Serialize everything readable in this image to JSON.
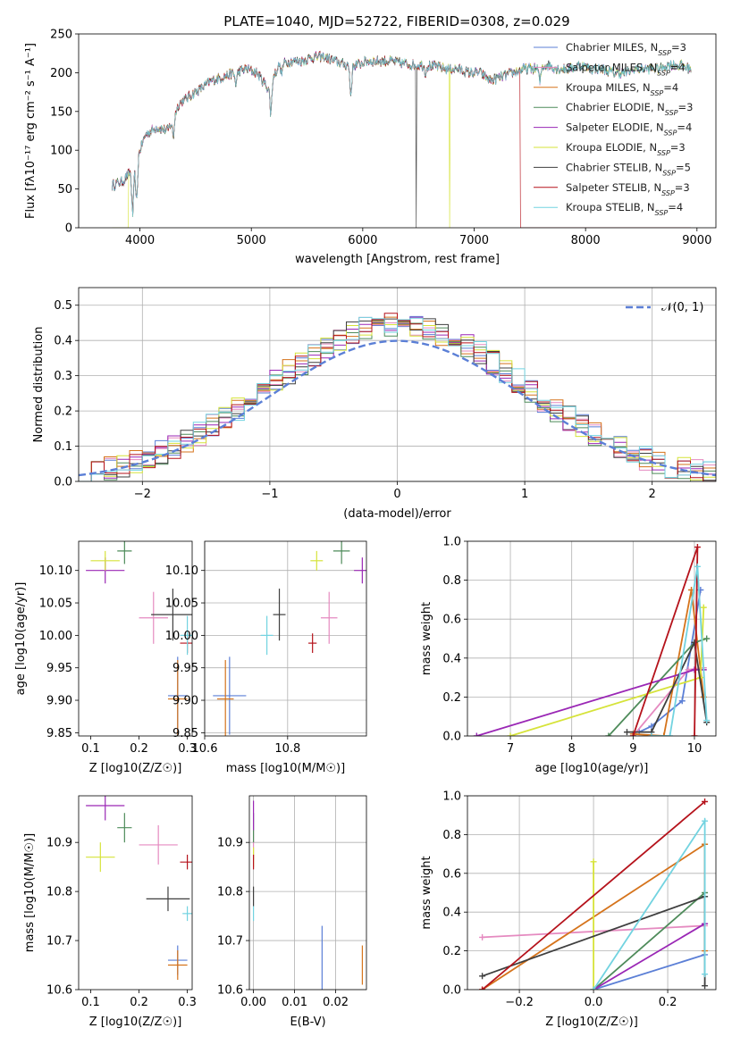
{
  "colors": [
    "#5b7fd6",
    "#e58ac0",
    "#d5731b",
    "#4e8b5a",
    "#9a27b5",
    "#d6e33a",
    "#3f3f3f",
    "#b5121b",
    "#72d3e0"
  ],
  "legend": [
    {
      "label": "Chabrier MILES, N",
      "sub": "SSP",
      "suffix": "=3"
    },
    {
      "label": "Salpeter MILES, N",
      "sub": "SSP",
      "suffix": "=4"
    },
    {
      "label": "Kroupa MILES, N",
      "sub": "SSP",
      "suffix": "=4"
    },
    {
      "label": "Chabrier ELODIE, N",
      "sub": "SSP",
      "suffix": "=3"
    },
    {
      "label": "Salpeter ELODIE, N",
      "sub": "SSP",
      "suffix": "=4"
    },
    {
      "label": "Kroupa ELODIE, N",
      "sub": "SSP",
      "suffix": "=3"
    },
    {
      "label": "Chabrier STELIB, N",
      "sub": "SSP",
      "suffix": "=5"
    },
    {
      "label": "Salpeter STELIB, N",
      "sub": "SSP",
      "suffix": "=3"
    },
    {
      "label": "Kroupa STELIB, N",
      "sub": "SSP",
      "suffix": "=4"
    }
  ],
  "chart_data": [
    {
      "id": "spectrum",
      "type": "line",
      "title": "PLATE=1040, MJD=52722, FIBERID=0308, z=0.029",
      "xlabel": "wavelength [Angstrom, rest frame]",
      "ylabel": "Flux [f_λ 10^-17 erg cm^-2 s^-1 A^-1]",
      "xlim": [
        3450,
        9170
      ],
      "ylim": [
        0,
        250
      ],
      "xticks": [
        4000,
        5000,
        6000,
        7000,
        8000,
        9000
      ],
      "yticks": [
        0,
        50,
        100,
        150,
        200,
        250
      ],
      "continuum": {
        "x": [
          3750,
          3850,
          3950,
          4050,
          4150,
          4250,
          4350,
          4450,
          4550,
          4650,
          4750,
          4850,
          4950,
          5050,
          5150,
          5250,
          5350,
          5450,
          5550,
          5650,
          5750,
          5850,
          5950,
          6050,
          6150,
          6250,
          6350,
          6450,
          6550,
          6650,
          6750,
          6850,
          6950,
          7050,
          7150,
          7250,
          7350,
          7450,
          7550,
          7650,
          7750,
          7850,
          7950,
          8050,
          8150,
          8250,
          8350,
          8450,
          8550,
          8650,
          8750,
          8850,
          8950
        ],
        "y": [
          55,
          60,
          80,
          120,
          130,
          125,
          160,
          170,
          180,
          190,
          195,
          200,
          205,
          200,
          180,
          210,
          215,
          215,
          220,
          220,
          215,
          210,
          210,
          215,
          215,
          215,
          212,
          210,
          210,
          208,
          205,
          205,
          200,
          200,
          190,
          195,
          200,
          205,
          205,
          210,
          205,
          205,
          210,
          205,
          205,
          200,
          200,
          205,
          205,
          205,
          210,
          210,
          205
        ]
      },
      "dropouts": [
        {
          "series": 5,
          "x": 3900
        },
        {
          "series": 6,
          "x": 6480
        },
        {
          "series": 5,
          "x": 6780
        },
        {
          "series": 7,
          "x": 7410
        }
      ]
    },
    {
      "id": "residuals",
      "type": "line",
      "xlabel": "(data-model)/error",
      "ylabel": "Normed distribution",
      "xlim": [
        -2.5,
        2.5
      ],
      "ylim": [
        0,
        0.55
      ],
      "xticks": [
        -2,
        -1,
        0,
        1,
        2
      ],
      "yticks": [
        0.0,
        0.1,
        0.2,
        0.3,
        0.4,
        0.5
      ],
      "legend_label": "𝒩(0, 1)",
      "legend_loc": "top-right",
      "grid": true,
      "bin_width": 0.1
    },
    {
      "id": "z_age",
      "type": "scatter",
      "xlabel": "Z [log10(Z/Z☉)]",
      "ylabel": "age  [log10(age/yr)]",
      "xlim": [
        0.075,
        0.31
      ],
      "ylim": [
        9.845,
        10.145
      ],
      "xticks": [
        0.1,
        0.2,
        0.3
      ],
      "yticks": [
        9.85,
        9.9,
        9.95,
        10.0,
        10.05,
        10.1
      ],
      "points": [
        {
          "s": 0,
          "x": 0.28,
          "y": 9.907,
          "xe": 0.02,
          "ye": 0.06
        },
        {
          "s": 1,
          "x": 0.23,
          "y": 10.027,
          "xe": 0.03,
          "ye": 0.04
        },
        {
          "s": 2,
          "x": 0.28,
          "y": 9.902,
          "xe": 0.02,
          "ye": 0.06
        },
        {
          "s": 3,
          "x": 0.17,
          "y": 10.13,
          "xe": 0.015,
          "ye": 0.02
        },
        {
          "s": 4,
          "x": 0.13,
          "y": 10.1,
          "xe": 0.04,
          "ye": 0.02
        },
        {
          "s": 5,
          "x": 0.13,
          "y": 10.115,
          "xe": 0.03,
          "ye": 0.015
        },
        {
          "s": 6,
          "x": 0.27,
          "y": 10.032,
          "xe": 0.045,
          "ye": 0.04
        },
        {
          "s": 7,
          "x": 0.3,
          "y": 9.988,
          "xe": 0.015,
          "ye": 0.015
        },
        {
          "s": 8,
          "x": 0.3,
          "y": 10.0,
          "xe": 0.015,
          "ye": 0.03
        }
      ]
    },
    {
      "id": "mass_age",
      "type": "scatter",
      "xlabel": "mass [log10(M/M☉)]",
      "ylabel": "",
      "xlim": [
        10.6,
        10.99
      ],
      "ylim": [
        9.845,
        10.145
      ],
      "xticks": [
        10.6,
        10.8
      ],
      "yticks": [
        9.85,
        9.9,
        9.95,
        10.0,
        10.05,
        10.1
      ],
      "points": [
        {
          "s": 0,
          "x": 10.66,
          "y": 9.907,
          "xe": 0.04,
          "ye": 0.06
        },
        {
          "s": 1,
          "x": 10.9,
          "y": 10.027,
          "xe": 0.02,
          "ye": 0.04
        },
        {
          "s": 2,
          "x": 10.65,
          "y": 9.902,
          "xe": 0.02,
          "ye": 0.06
        },
        {
          "s": 3,
          "x": 10.93,
          "y": 10.13,
          "xe": 0.02,
          "ye": 0.02
        },
        {
          "s": 4,
          "x": 10.98,
          "y": 10.1,
          "xe": 0.02,
          "ye": 0.02
        },
        {
          "s": 5,
          "x": 10.87,
          "y": 10.115,
          "xe": 0.015,
          "ye": 0.015
        },
        {
          "s": 6,
          "x": 10.78,
          "y": 10.032,
          "xe": 0.015,
          "ye": 0.04
        },
        {
          "s": 7,
          "x": 10.86,
          "y": 9.988,
          "xe": 0.01,
          "ye": 0.015
        },
        {
          "s": 8,
          "x": 10.75,
          "y": 10.0,
          "xe": 0.015,
          "ye": 0.03
        }
      ]
    },
    {
      "id": "age_weight",
      "type": "line",
      "xlabel": "age  [log10(age/yr)]",
      "ylabel": "mass weight",
      "xlim": [
        6.3,
        10.35
      ],
      "ylim": [
        0,
        1.0
      ],
      "xticks": [
        7,
        8,
        9,
        10
      ],
      "yticks": [
        0.0,
        0.2,
        0.4,
        0.6,
        0.8,
        1.0
      ],
      "series": [
        {
          "s": 0,
          "x": [
            9.1,
            9.3,
            9.8,
            10.1
          ],
          "y": [
            0.02,
            0.05,
            0.18,
            0.75
          ]
        },
        {
          "s": 1,
          "x": [
            9.0,
            9.9,
            10.15
          ],
          "y": [
            0.0,
            0.34,
            0.35
          ]
        },
        {
          "s": 2,
          "x": [
            9.0,
            9.5,
            9.95,
            10.15
          ],
          "y": [
            0.01,
            0.0,
            0.75,
            0.2
          ]
        },
        {
          "s": 3,
          "x": [
            8.6,
            10.0,
            10.2
          ],
          "y": [
            0.0,
            0.48,
            0.5
          ]
        },
        {
          "s": 4,
          "x": [
            6.45,
            10.0,
            10.15
          ],
          "y": [
            0.0,
            0.34,
            0.34
          ]
        },
        {
          "s": 5,
          "x": [
            7.0,
            10.1,
            10.15
          ],
          "y": [
            0.0,
            0.3,
            0.66
          ]
        },
        {
          "s": 6,
          "x": [
            8.9,
            9.3,
            10.0,
            10.2
          ],
          "y": [
            0.02,
            0.02,
            0.48,
            0.07
          ]
        },
        {
          "s": 7,
          "x": [
            9.0,
            10.05,
            10.0
          ],
          "y": [
            0.0,
            0.97,
            0.0
          ]
        },
        {
          "s": 8,
          "x": [
            9.3,
            9.6,
            10.05,
            10.2
          ],
          "y": [
            0.0,
            0.0,
            0.87,
            0.08
          ]
        }
      ]
    },
    {
      "id": "z_mass",
      "type": "scatter",
      "xlabel": "Z [log10(Z/Z☉)]",
      "ylabel": "mass [log10(M/M☉)]",
      "xlim": [
        0.075,
        0.31
      ],
      "ylim": [
        10.6,
        10.995
      ],
      "xticks": [
        0.1,
        0.2,
        0.3
      ],
      "yticks": [
        10.6,
        10.7,
        10.8,
        10.9
      ],
      "points": [
        {
          "s": 0,
          "x": 0.28,
          "y": 10.66,
          "xe": 0.02,
          "ye": 0.03
        },
        {
          "s": 1,
          "x": 0.24,
          "y": 10.895,
          "xe": 0.04,
          "ye": 0.04
        },
        {
          "s": 2,
          "x": 0.28,
          "y": 10.65,
          "xe": 0.02,
          "ye": 0.03
        },
        {
          "s": 3,
          "x": 0.17,
          "y": 10.93,
          "xe": 0.015,
          "ye": 0.03
        },
        {
          "s": 4,
          "x": 0.13,
          "y": 10.975,
          "xe": 0.04,
          "ye": 0.03
        },
        {
          "s": 5,
          "x": 0.12,
          "y": 10.87,
          "xe": 0.03,
          "ye": 0.03
        },
        {
          "s": 6,
          "x": 0.26,
          "y": 10.785,
          "xe": 0.045,
          "ye": 0.025
        },
        {
          "s": 7,
          "x": 0.3,
          "y": 10.86,
          "xe": 0.015,
          "ye": 0.015
        },
        {
          "s": 8,
          "x": 0.3,
          "y": 10.755,
          "xe": 0.01,
          "ye": 0.015
        }
      ]
    },
    {
      "id": "ebv_mass",
      "type": "scatter",
      "xlabel": "E(B-V)",
      "ylabel": "",
      "xlim": [
        -0.001,
        0.0275
      ],
      "ylim": [
        10.6,
        10.995
      ],
      "xticks": [
        0.0,
        0.01,
        0.02
      ],
      "yticks": [
        10.6,
        10.7,
        10.8,
        10.9
      ],
      "points": [
        {
          "s": 0,
          "x": 0.0167,
          "y": 10.66,
          "xe": 0,
          "ye": 0.07
        },
        {
          "s": 1,
          "x": 0.0,
          "y": 10.895,
          "xe": 0,
          "ye": 0.03
        },
        {
          "s": 2,
          "x": 0.0265,
          "y": 10.65,
          "xe": 0,
          "ye": 0.04
        },
        {
          "s": 3,
          "x": 0.0,
          "y": 10.93,
          "xe": 0,
          "ye": 0.03
        },
        {
          "s": 4,
          "x": 0.0,
          "y": 10.955,
          "xe": 0,
          "ye": 0.03
        },
        {
          "s": 5,
          "x": 0.0,
          "y": 10.87,
          "xe": 0,
          "ye": 0.02
        },
        {
          "s": 6,
          "x": 0.0,
          "y": 10.79,
          "xe": 0,
          "ye": 0.02
        },
        {
          "s": 7,
          "x": 0.0,
          "y": 10.86,
          "xe": 0,
          "ye": 0.015
        },
        {
          "s": 8,
          "x": 0.0,
          "y": 10.755,
          "xe": 0,
          "ye": 0.015
        }
      ]
    },
    {
      "id": "z_weight",
      "type": "line",
      "xlabel": "Z [log10(Z/Z☉)]",
      "ylabel": "mass weight",
      "xlim": [
        -0.34,
        0.33
      ],
      "ylim": [
        0,
        1.0
      ],
      "xticks": [
        -0.2,
        0.0,
        0.2
      ],
      "yticks": [
        0.0,
        0.2,
        0.4,
        0.6,
        0.8,
        1.0
      ],
      "series": [
        {
          "s": 0,
          "x": [
            0.0,
            0.3,
            0.3
          ],
          "y": [
            0.0,
            0.18,
            0.75
          ]
        },
        {
          "s": 1,
          "x": [
            -0.3,
            0.3
          ],
          "y": [
            0.27,
            0.33
          ]
        },
        {
          "s": 2,
          "x": [
            -0.3,
            0.3,
            0.3
          ],
          "y": [
            0.0,
            0.75,
            0.2
          ]
        },
        {
          "s": 3,
          "x": [
            0.0,
            0.3,
            0.3
          ],
          "y": [
            0.0,
            0.5,
            0.48
          ]
        },
        {
          "s": 4,
          "x": [
            0.0,
            0.3,
            0.3
          ],
          "y": [
            0.0,
            0.34,
            0.34
          ]
        },
        {
          "s": 5,
          "x": [
            0.0,
            0.0
          ],
          "y": [
            0.0,
            0.66
          ]
        },
        {
          "s": 6,
          "x": [
            -0.3,
            0.3,
            0.3
          ],
          "y": [
            0.07,
            0.48,
            0.02
          ]
        },
        {
          "s": 7,
          "x": [
            -0.3,
            0.3
          ],
          "y": [
            0.0,
            0.97
          ]
        },
        {
          "s": 8,
          "x": [
            0.0,
            0.3,
            0.3
          ],
          "y": [
            0.0,
            0.87,
            0.08
          ]
        }
      ]
    }
  ]
}
